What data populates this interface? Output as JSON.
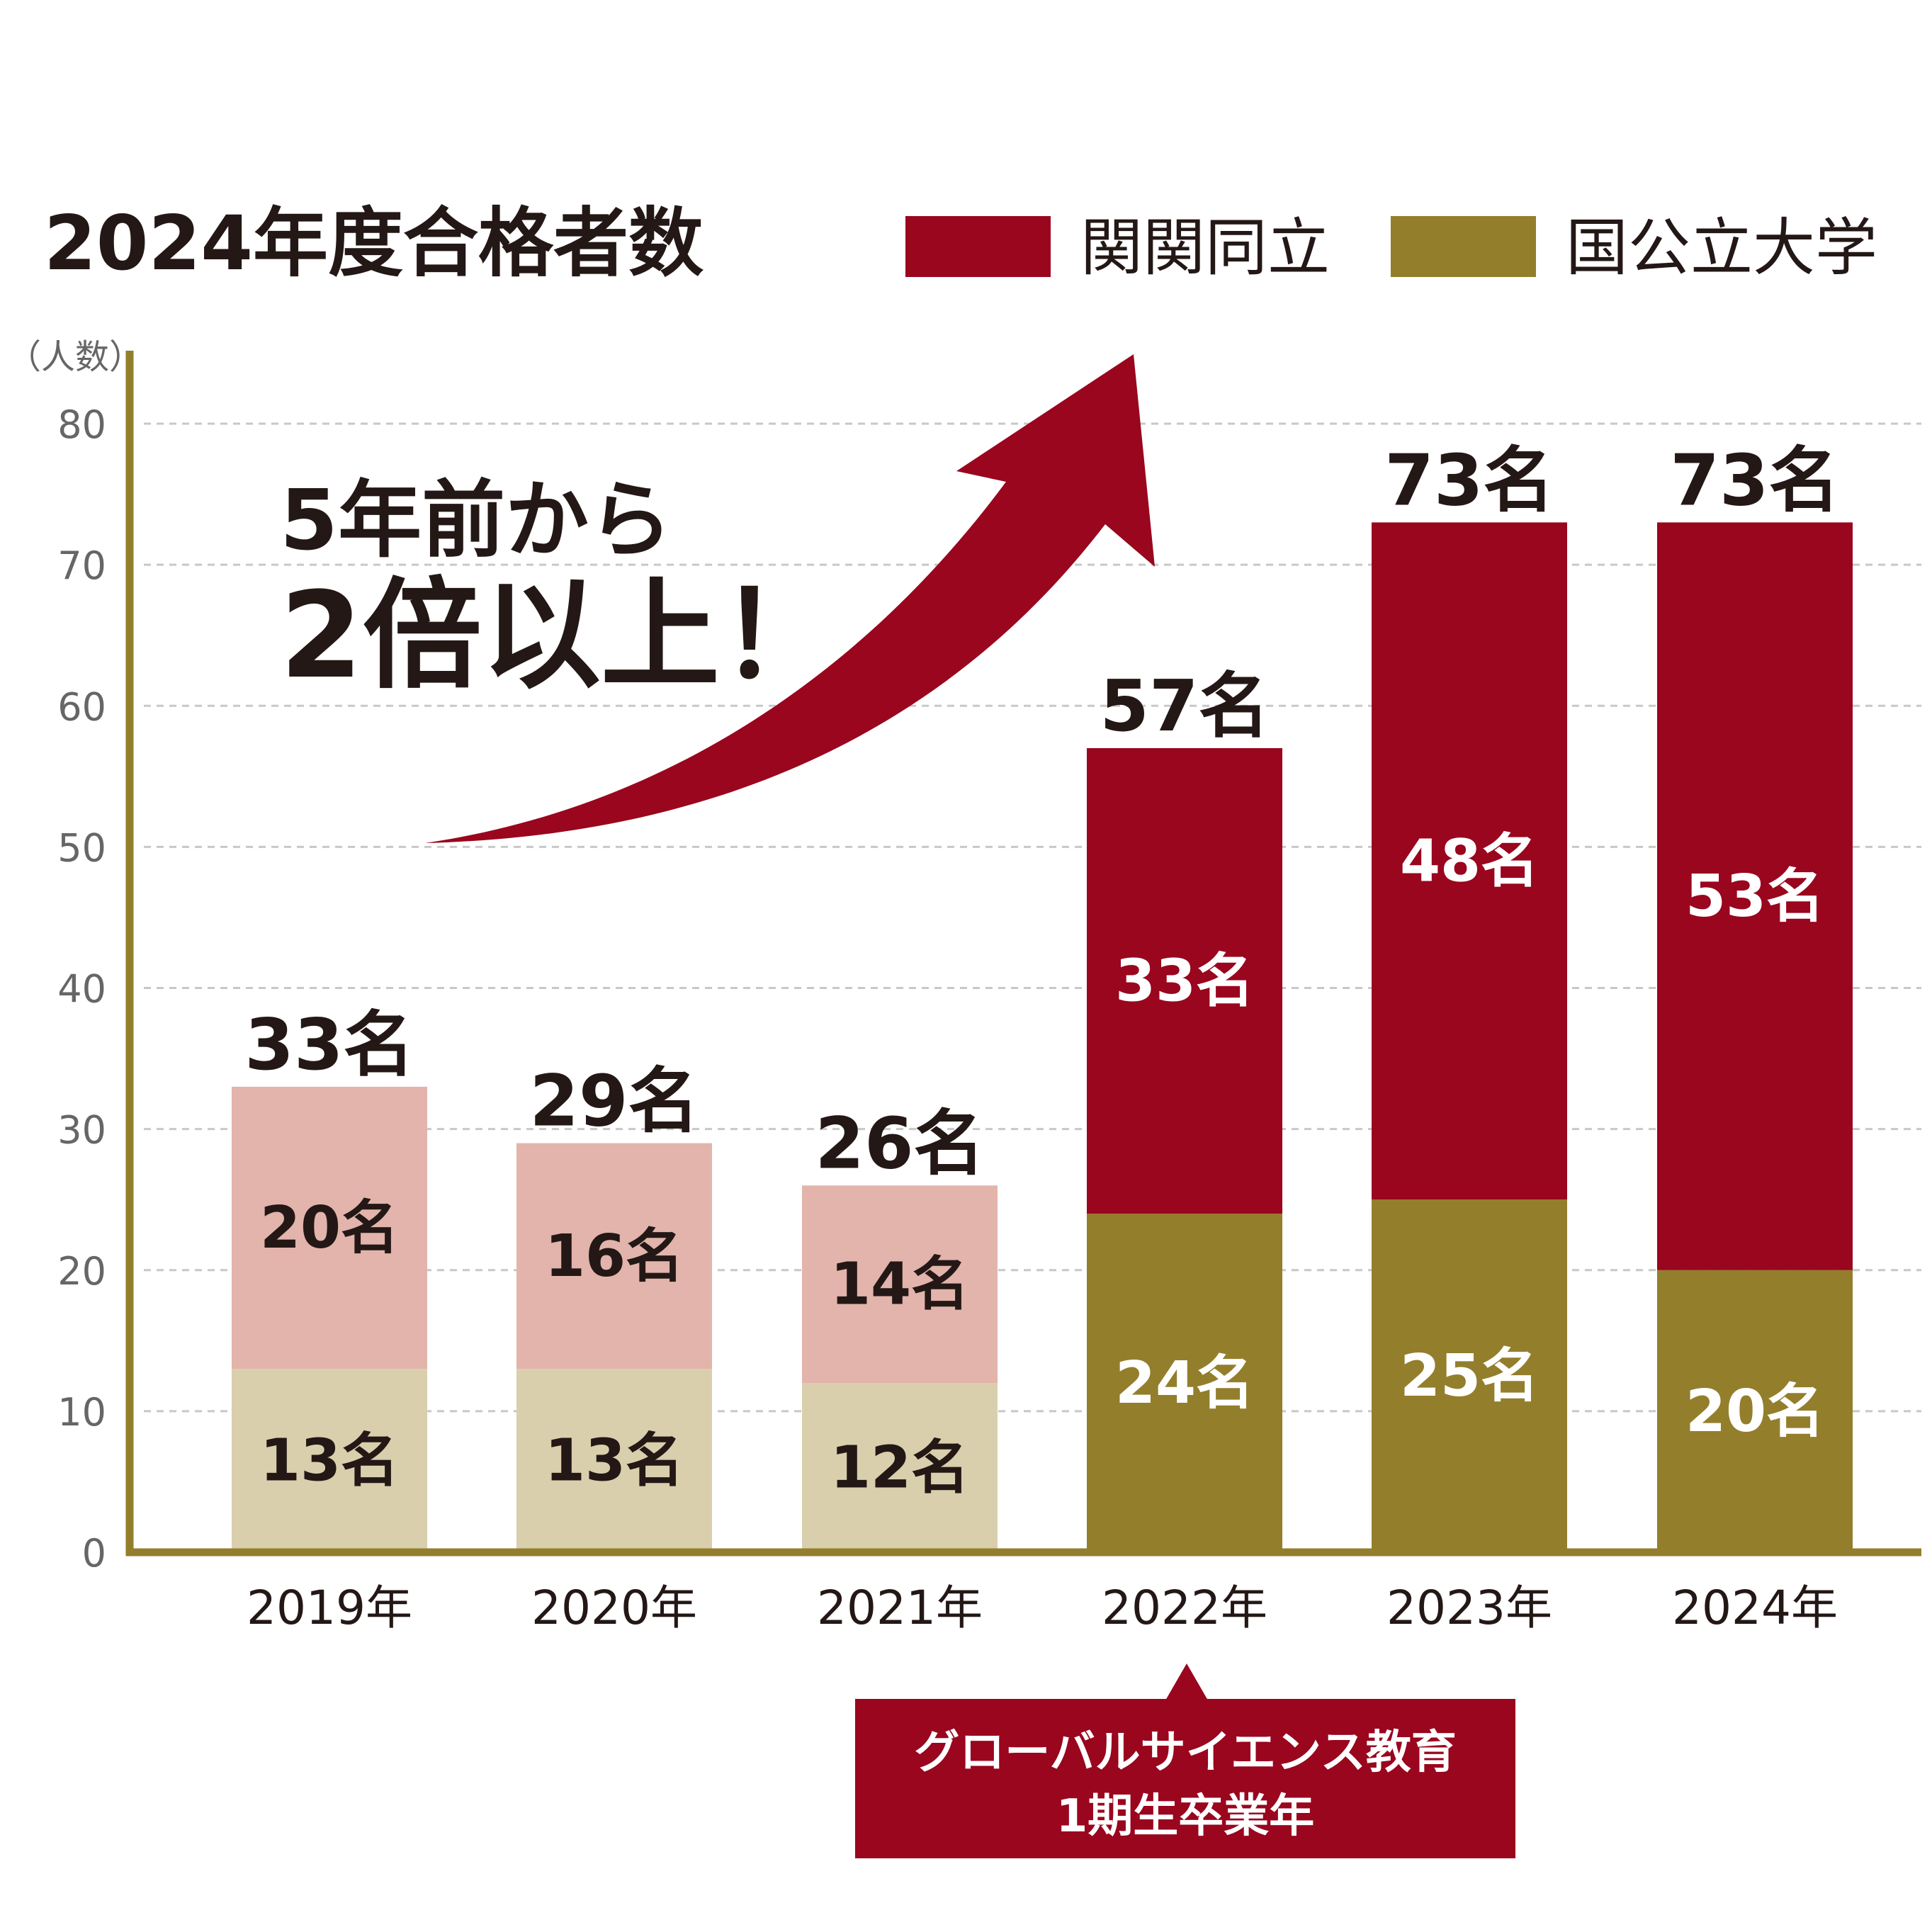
{
  "chart_data": {
    "type": "bar",
    "stacked": true,
    "title": "2024年度合格者数",
    "ylabel": "（人数）",
    "ylim": [
      0,
      80
    ],
    "yticks": [
      "0",
      "10",
      "20",
      "30",
      "40",
      "50",
      "60",
      "70",
      "80"
    ],
    "grid": true,
    "legend_position": "top-right",
    "categories": [
      "2019年",
      "2020年",
      "2021年",
      "2022年",
      "2023年",
      "2024年"
    ],
    "series": [
      {
        "name": "国公立大学",
        "values": [
          13,
          13,
          12,
          24,
          25,
          20
        ],
        "labels": [
          "13名",
          "13名",
          "12名",
          "24名",
          "25名",
          "20名"
        ],
        "color": "#937e2c",
        "faded_color": "#d9cfad"
      },
      {
        "name": "関関同立",
        "values": [
          20,
          16,
          14,
          33,
          48,
          53
        ],
        "labels": [
          "20名",
          "16名",
          "14名",
          "33名",
          "48名",
          "53名"
        ],
        "color": "#99061e",
        "faded_color": "#e2b4ab"
      }
    ],
    "totals": [
      "33名",
      "29名",
      "26名",
      "57名",
      "73名",
      "73名"
    ],
    "faded_categories": [
      "2019年",
      "2020年",
      "2021年"
    ],
    "headline": {
      "line1": "5年前から",
      "line2": "2倍以上！"
    },
    "callout": {
      "line1": "グローバルサイエンス教育",
      "line2": "1期生卒業年",
      "target_category": "2022年"
    }
  },
  "colors": {
    "axis": "#937e2c",
    "grid": "#c8c8c8",
    "tick_text": "#666666",
    "dark_text": "#231815",
    "accent_red": "#99061e"
  }
}
